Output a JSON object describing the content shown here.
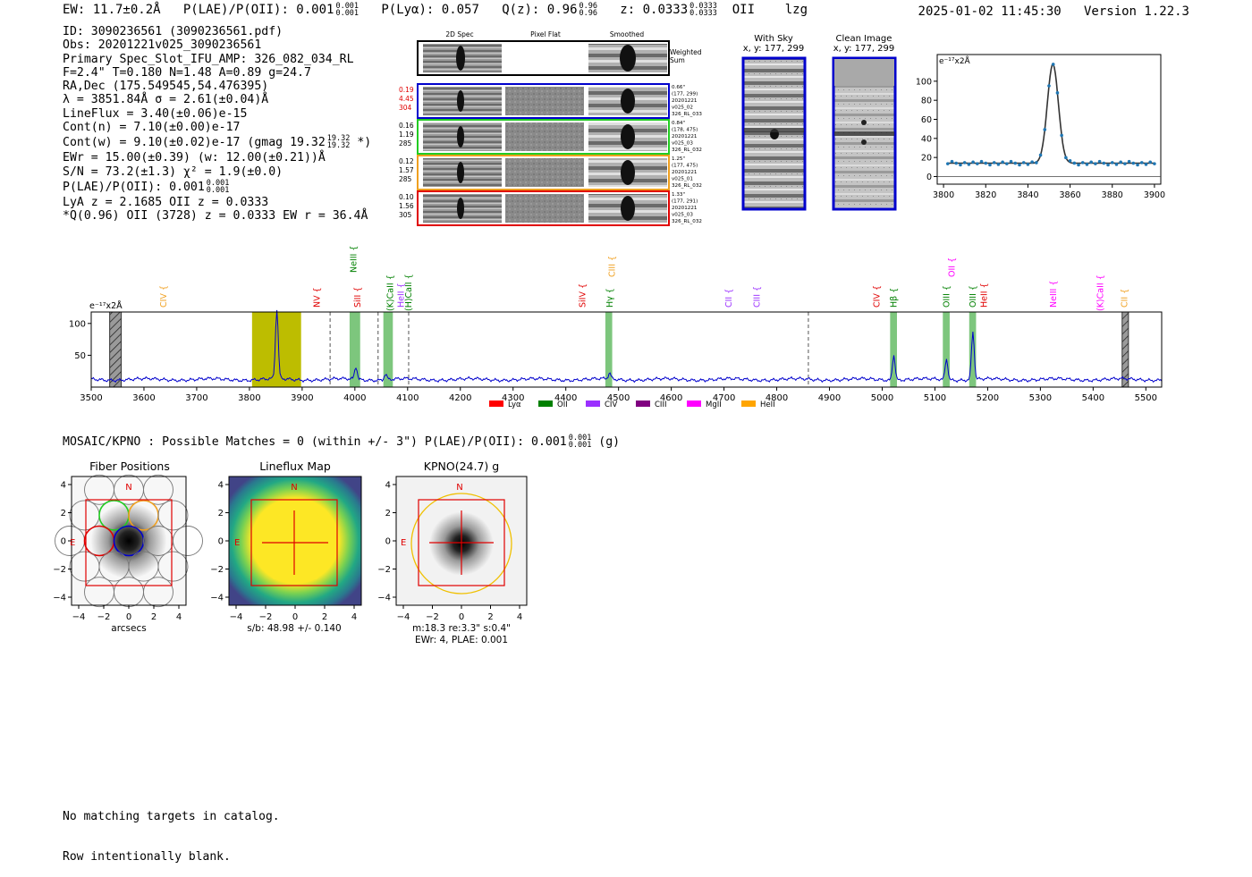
{
  "header": {
    "ew": "EW: 11.7±0.2Å",
    "plae_label": "P(LAE)/P(OII): 0.001",
    "plae_hi": "0.001",
    "plae_lo": "0.001",
    "plya": "P(Lyα): 0.057",
    "qz_label": "Q(z): 0.96",
    "qz_hi": "0.96",
    "qz_lo": "0.96",
    "z_label": "z: 0.0333",
    "z_hi": "0.0333",
    "z_lo": "0.0333",
    "line": "OII",
    "flags": "lzg",
    "timestamp": "2025-01-02 11:45:30",
    "version": "Version 1.22.3"
  },
  "info": {
    "id": "ID: 3090236561 (3090236561.pdf)",
    "obs": "Obs: 20201221v025_3090236561",
    "primary": "Primary Spec_Slot_IFU_AMP: 326_082_034_RL",
    "params": "F=2.4\"  T=0.180  N=1.48  A=0.89  g=24.7",
    "radec": "RA,Dec (175.549545,54.476395)",
    "lambda": "λ = 3851.84Å  σ = 2.61(±0.04)Å",
    "lineflux": "LineFlux = 3.40(±0.06)e-15",
    "contn": "Cont(n) = 7.10(±0.00)e-17",
    "contw": "Cont(w) = 9.10(±0.02)e-17 (gmag 19.32",
    "gmag_hi": "19.32",
    "gmag_lo": "19.32",
    "contw_end": "*)",
    "ewr": "EWr = 15.00(±0.39) (w: 12.00(±0.21))Å",
    "sn": "S/N = 73.2(±1.3)  χ² = 1.9(±0.0)",
    "plae": "P(LAE)/P(OII): 0.001",
    "plae_hi": "0.001",
    "plae_lo": "0.001",
    "lya": "LyA z = 2.1685  OII z = 0.0333",
    "qoii": "*Q(0.96) OII (3728) z = 0.0333  EW r = 36.4Å"
  },
  "spec2d": {
    "col_titles": [
      "2D Spec",
      "Pixel Flat",
      "Smoothed"
    ],
    "weighted_label_1": "Weighted",
    "weighted_label_2": "Sum",
    "rows": [
      {
        "left": [
          "0.19",
          "4.45",
          "304"
        ],
        "right": [
          "0.66\"",
          "(177, 299)",
          "20201221",
          "v025_02",
          "326_RL_033"
        ],
        "color": "#0000cc",
        "leftcolor": "#e00000"
      },
      {
        "left": [
          "0.16",
          "1.19",
          "285"
        ],
        "right": [
          "0.84\"",
          "(178, 475)",
          "20201221",
          "v025_03",
          "326_RL_032"
        ],
        "color": "#22cc22",
        "leftcolor": "#000000"
      },
      {
        "left": [
          "0.12",
          "1.57",
          "285"
        ],
        "right": [
          "1.25\"",
          "(177, 475)",
          "20201221",
          "v025_01",
          "326_RL_032"
        ],
        "color": "#f0a020",
        "leftcolor": "#000000"
      },
      {
        "left": [
          "0.10",
          "1.56",
          "305"
        ],
        "right": [
          "1.33\"",
          "(177, 291)",
          "20201221",
          "v025_03",
          "326_RL_032"
        ],
        "color": "#e00000",
        "leftcolor": "#000000"
      }
    ]
  },
  "cutouts": {
    "withsky_title": "With Sky",
    "withsky_xy": "x, y: 177, 299",
    "clean_title": "Clean Image",
    "clean_xy": "x, y: 177, 299"
  },
  "zoom_chart_data": {
    "type": "scatter",
    "ylabel": "e⁻¹⁷x2Å",
    "xlim": [
      3797,
      3903
    ],
    "ylim": [
      -8,
      128
    ],
    "xticks": [
      3800,
      3820,
      3840,
      3860,
      3880,
      3900
    ],
    "yticks": [
      0,
      20,
      40,
      60,
      80,
      100
    ],
    "center": 3851.84,
    "sigma": 2.61,
    "peak": 118,
    "continuum": 14
  },
  "chart_data": {
    "type": "line",
    "ylabel": "e⁻¹⁷x2Å",
    "xlim": [
      3500,
      5530
    ],
    "ylim": [
      0,
      118
    ],
    "xticks": [
      3500,
      3600,
      3700,
      3800,
      3900,
      4000,
      4100,
      4200,
      4300,
      4400,
      4500,
      4600,
      4700,
      4800,
      4900,
      5000,
      5100,
      5200,
      5300,
      5400,
      5500
    ],
    "yticks": [
      50,
      100
    ],
    "continuum": 12,
    "peaks": [
      {
        "x": 3852,
        "h": 110,
        "w": 2.6
      },
      {
        "x": 4002,
        "h": 20,
        "w": 2.5
      },
      {
        "x": 4058,
        "h": 9,
        "w": 2.5
      },
      {
        "x": 4483,
        "h": 9,
        "w": 2.5
      },
      {
        "x": 5022,
        "h": 40,
        "w": 2.6
      },
      {
        "x": 5122,
        "h": 33,
        "w": 2.6
      },
      {
        "x": 5172,
        "h": 75,
        "w": 2.6
      }
    ],
    "highlight": {
      "x0": 3805,
      "x1": 3898
    },
    "hatched": [
      {
        "x0": 3535,
        "x1": 3557
      },
      {
        "x0": 5455,
        "x1": 5467
      }
    ],
    "green_bands": [
      [
        3990,
        4010
      ],
      [
        4054,
        4072
      ],
      [
        4475,
        4488
      ],
      [
        5015,
        5028
      ],
      [
        5115,
        5128
      ],
      [
        5165,
        5178
      ]
    ],
    "dashed": [
      3953,
      4044,
      4102,
      4860
    ],
    "lines": [
      {
        "name": "CIV",
        "x": 3637,
        "color": "#f0a020",
        "row": "mid"
      },
      {
        "name": "NV",
        "x": 3928,
        "color": "#e00000",
        "row": "low"
      },
      {
        "name": "SiII",
        "x": 4005,
        "color": "#e00000",
        "row": "low"
      },
      {
        "name": "NeIII",
        "x": 3998,
        "color": "#008000",
        "row": "high"
      },
      {
        "name": "(K)CaII",
        "x": 4067,
        "color": "#008000",
        "row": "mid2"
      },
      {
        "name": "HeII",
        "x": 4088,
        "color": "#9b30ff",
        "row": "low"
      },
      {
        "name": "(H)CaII",
        "x": 4102,
        "color": "#008000",
        "row": "mid2"
      },
      {
        "name": "SiIV",
        "x": 4432,
        "color": "#e00000",
        "row": "low"
      },
      {
        "name": "Hγ",
        "x": 4484,
        "color": "#008000",
        "row": "low"
      },
      {
        "name": "CIII",
        "x": 4488,
        "color": "#f0a020",
        "row": "top"
      },
      {
        "name": "CII",
        "x": 4709,
        "color": "#9b30ff",
        "row": "low"
      },
      {
        "name": "CIII",
        "x": 4763,
        "color": "#9b30ff",
        "row": "low"
      },
      {
        "name": "CIV",
        "x": 4990,
        "color": "#e00000",
        "row": "low"
      },
      {
        "name": "Hβ",
        "x": 5022,
        "color": "#008000",
        "row": "low"
      },
      {
        "name": "OIII",
        "x": 5122,
        "color": "#008000",
        "row": "low"
      },
      {
        "name": "OII",
        "x": 5132,
        "color": "#ff00ff",
        "row": "top"
      },
      {
        "name": "OIII",
        "x": 5172,
        "color": "#008000",
        "row": "low"
      },
      {
        "name": "HeII",
        "x": 5193,
        "color": "#e00000",
        "row": "low"
      },
      {
        "name": "NeIII",
        "x": 5325,
        "color": "#ff00ff",
        "row": "low"
      },
      {
        "name": "(K)CaII",
        "x": 5414,
        "color": "#ff00ff",
        "row": "mid2"
      },
      {
        "name": "CII",
        "x": 5460,
        "color": "#f0a020",
        "row": "low"
      }
    ],
    "legend": [
      {
        "label": "Lyα",
        "color": "#ff0000"
      },
      {
        "label": "OII",
        "color": "#008000"
      },
      {
        "label": "CIV",
        "color": "#9b30ff"
      },
      {
        "label": "CIII",
        "color": "#800080"
      },
      {
        "label": "MgII",
        "color": "#ff00ff"
      },
      {
        "label": "HeII",
        "color": "#ffa500"
      }
    ]
  },
  "mosaic": {
    "text": "MOSAIC/KPNO : Possible Matches = 0 (within +/- 3\")  P(LAE)/P(OII): 0.001",
    "hi": "0.001",
    "lo": "0.001",
    "end": "(g)"
  },
  "panels": {
    "fiber_title": "Fiber Positions",
    "fiber_xlabel": "arcsecs",
    "lineflux_title": "Lineflux Map",
    "lineflux_xlabel": "s/b: 48.98 +/- 0.140",
    "kpno_title": "KPNO(24.7) g",
    "kpno_xlabel1": "m:18.3  re:3.3\"  s:0.4\"",
    "kpno_xlabel2": "EWr: 4, PLAE: 0.001",
    "north": "N",
    "east": "E",
    "ticks": [
      "−4",
      "−2",
      "0",
      "2",
      "4"
    ]
  },
  "footer": {
    "line1": "No matching targets in catalog.",
    "line2": "Row intentionally blank."
  }
}
